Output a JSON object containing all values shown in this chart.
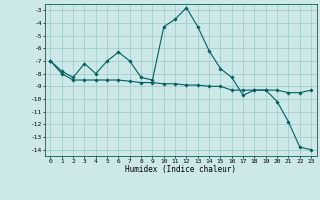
{
  "title": "",
  "xlabel": "Humidex (Indice chaleur)",
  "bg_color": "#cde8e8",
  "grid_color": "#a0c8c8",
  "line_color": "#006060",
  "xlim": [
    -0.5,
    23.5
  ],
  "ylim": [
    -14.5,
    -2.5
  ],
  "yticks": [
    -3,
    -4,
    -5,
    -6,
    -7,
    -8,
    -9,
    -10,
    -11,
    -12,
    -13,
    -14
  ],
  "xticks": [
    0,
    1,
    2,
    3,
    4,
    5,
    6,
    7,
    8,
    9,
    10,
    11,
    12,
    13,
    14,
    15,
    16,
    17,
    18,
    19,
    20,
    21,
    22,
    23
  ],
  "line1_x": [
    0,
    1,
    2,
    3,
    4,
    5,
    6,
    7,
    8,
    9,
    10,
    11,
    12,
    13,
    14,
    15,
    16,
    17,
    18,
    19,
    20,
    21,
    22,
    23
  ],
  "line1_y": [
    -7.0,
    -7.8,
    -8.3,
    -7.2,
    -8.0,
    -7.0,
    -6.3,
    -7.0,
    -8.3,
    -8.5,
    -4.3,
    -3.7,
    -2.8,
    -4.3,
    -6.2,
    -7.6,
    -8.3,
    -9.7,
    -9.3,
    -9.3,
    -10.2,
    -11.8,
    -13.8,
    -14.0
  ],
  "line2_x": [
    0,
    1,
    2,
    3,
    4,
    5,
    6,
    7,
    8,
    9,
    10,
    11,
    12,
    13,
    14,
    15,
    16,
    17,
    18,
    19,
    20,
    21,
    22,
    23
  ],
  "line2_y": [
    -7.0,
    -8.0,
    -8.5,
    -8.5,
    -8.5,
    -8.5,
    -8.5,
    -8.6,
    -8.7,
    -8.7,
    -8.8,
    -8.8,
    -8.9,
    -8.9,
    -9.0,
    -9.0,
    -9.3,
    -9.3,
    -9.3,
    -9.3,
    -9.3,
    -9.5,
    -9.5,
    -9.3
  ]
}
